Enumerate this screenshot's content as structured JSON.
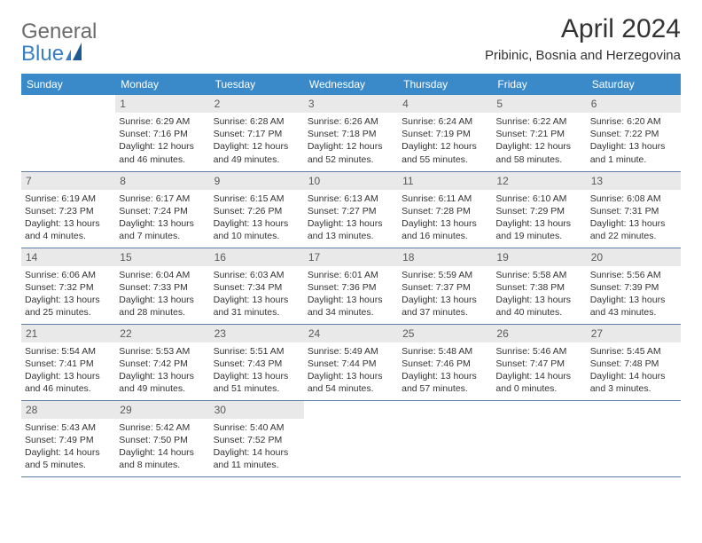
{
  "brand": {
    "word1": "General",
    "word2": "Blue"
  },
  "title": "April 2024",
  "location": "Pribinic, Bosnia and Herzegovina",
  "colors": {
    "header_bg": "#3a8ac9",
    "header_text": "#ffffff",
    "daynum_bg": "#e9e9e9",
    "daynum_text": "#5a5a5a",
    "body_text": "#333333",
    "rule": "#5b7da6",
    "logo_gray": "#6b6b6b",
    "logo_blue": "#3a7fc4",
    "page_bg": "#ffffff"
  },
  "weekdays": [
    "Sunday",
    "Monday",
    "Tuesday",
    "Wednesday",
    "Thursday",
    "Friday",
    "Saturday"
  ],
  "weeks": [
    [
      null,
      {
        "day": "1",
        "sunrise": "Sunrise: 6:29 AM",
        "sunset": "Sunset: 7:16 PM",
        "day1": "Daylight: 12 hours",
        "day2": "and 46 minutes."
      },
      {
        "day": "2",
        "sunrise": "Sunrise: 6:28 AM",
        "sunset": "Sunset: 7:17 PM",
        "day1": "Daylight: 12 hours",
        "day2": "and 49 minutes."
      },
      {
        "day": "3",
        "sunrise": "Sunrise: 6:26 AM",
        "sunset": "Sunset: 7:18 PM",
        "day1": "Daylight: 12 hours",
        "day2": "and 52 minutes."
      },
      {
        "day": "4",
        "sunrise": "Sunrise: 6:24 AM",
        "sunset": "Sunset: 7:19 PM",
        "day1": "Daylight: 12 hours",
        "day2": "and 55 minutes."
      },
      {
        "day": "5",
        "sunrise": "Sunrise: 6:22 AM",
        "sunset": "Sunset: 7:21 PM",
        "day1": "Daylight: 12 hours",
        "day2": "and 58 minutes."
      },
      {
        "day": "6",
        "sunrise": "Sunrise: 6:20 AM",
        "sunset": "Sunset: 7:22 PM",
        "day1": "Daylight: 13 hours",
        "day2": "and 1 minute."
      }
    ],
    [
      {
        "day": "7",
        "sunrise": "Sunrise: 6:19 AM",
        "sunset": "Sunset: 7:23 PM",
        "day1": "Daylight: 13 hours",
        "day2": "and 4 minutes."
      },
      {
        "day": "8",
        "sunrise": "Sunrise: 6:17 AM",
        "sunset": "Sunset: 7:24 PM",
        "day1": "Daylight: 13 hours",
        "day2": "and 7 minutes."
      },
      {
        "day": "9",
        "sunrise": "Sunrise: 6:15 AM",
        "sunset": "Sunset: 7:26 PM",
        "day1": "Daylight: 13 hours",
        "day2": "and 10 minutes."
      },
      {
        "day": "10",
        "sunrise": "Sunrise: 6:13 AM",
        "sunset": "Sunset: 7:27 PM",
        "day1": "Daylight: 13 hours",
        "day2": "and 13 minutes."
      },
      {
        "day": "11",
        "sunrise": "Sunrise: 6:11 AM",
        "sunset": "Sunset: 7:28 PM",
        "day1": "Daylight: 13 hours",
        "day2": "and 16 minutes."
      },
      {
        "day": "12",
        "sunrise": "Sunrise: 6:10 AM",
        "sunset": "Sunset: 7:29 PM",
        "day1": "Daylight: 13 hours",
        "day2": "and 19 minutes."
      },
      {
        "day": "13",
        "sunrise": "Sunrise: 6:08 AM",
        "sunset": "Sunset: 7:31 PM",
        "day1": "Daylight: 13 hours",
        "day2": "and 22 minutes."
      }
    ],
    [
      {
        "day": "14",
        "sunrise": "Sunrise: 6:06 AM",
        "sunset": "Sunset: 7:32 PM",
        "day1": "Daylight: 13 hours",
        "day2": "and 25 minutes."
      },
      {
        "day": "15",
        "sunrise": "Sunrise: 6:04 AM",
        "sunset": "Sunset: 7:33 PM",
        "day1": "Daylight: 13 hours",
        "day2": "and 28 minutes."
      },
      {
        "day": "16",
        "sunrise": "Sunrise: 6:03 AM",
        "sunset": "Sunset: 7:34 PM",
        "day1": "Daylight: 13 hours",
        "day2": "and 31 minutes."
      },
      {
        "day": "17",
        "sunrise": "Sunrise: 6:01 AM",
        "sunset": "Sunset: 7:36 PM",
        "day1": "Daylight: 13 hours",
        "day2": "and 34 minutes."
      },
      {
        "day": "18",
        "sunrise": "Sunrise: 5:59 AM",
        "sunset": "Sunset: 7:37 PM",
        "day1": "Daylight: 13 hours",
        "day2": "and 37 minutes."
      },
      {
        "day": "19",
        "sunrise": "Sunrise: 5:58 AM",
        "sunset": "Sunset: 7:38 PM",
        "day1": "Daylight: 13 hours",
        "day2": "and 40 minutes."
      },
      {
        "day": "20",
        "sunrise": "Sunrise: 5:56 AM",
        "sunset": "Sunset: 7:39 PM",
        "day1": "Daylight: 13 hours",
        "day2": "and 43 minutes."
      }
    ],
    [
      {
        "day": "21",
        "sunrise": "Sunrise: 5:54 AM",
        "sunset": "Sunset: 7:41 PM",
        "day1": "Daylight: 13 hours",
        "day2": "and 46 minutes."
      },
      {
        "day": "22",
        "sunrise": "Sunrise: 5:53 AM",
        "sunset": "Sunset: 7:42 PM",
        "day1": "Daylight: 13 hours",
        "day2": "and 49 minutes."
      },
      {
        "day": "23",
        "sunrise": "Sunrise: 5:51 AM",
        "sunset": "Sunset: 7:43 PM",
        "day1": "Daylight: 13 hours",
        "day2": "and 51 minutes."
      },
      {
        "day": "24",
        "sunrise": "Sunrise: 5:49 AM",
        "sunset": "Sunset: 7:44 PM",
        "day1": "Daylight: 13 hours",
        "day2": "and 54 minutes."
      },
      {
        "day": "25",
        "sunrise": "Sunrise: 5:48 AM",
        "sunset": "Sunset: 7:46 PM",
        "day1": "Daylight: 13 hours",
        "day2": "and 57 minutes."
      },
      {
        "day": "26",
        "sunrise": "Sunrise: 5:46 AM",
        "sunset": "Sunset: 7:47 PM",
        "day1": "Daylight: 14 hours",
        "day2": "and 0 minutes."
      },
      {
        "day": "27",
        "sunrise": "Sunrise: 5:45 AM",
        "sunset": "Sunset: 7:48 PM",
        "day1": "Daylight: 14 hours",
        "day2": "and 3 minutes."
      }
    ],
    [
      {
        "day": "28",
        "sunrise": "Sunrise: 5:43 AM",
        "sunset": "Sunset: 7:49 PM",
        "day1": "Daylight: 14 hours",
        "day2": "and 5 minutes."
      },
      {
        "day": "29",
        "sunrise": "Sunrise: 5:42 AM",
        "sunset": "Sunset: 7:50 PM",
        "day1": "Daylight: 14 hours",
        "day2": "and 8 minutes."
      },
      {
        "day": "30",
        "sunrise": "Sunrise: 5:40 AM",
        "sunset": "Sunset: 7:52 PM",
        "day1": "Daylight: 14 hours",
        "day2": "and 11 minutes."
      },
      null,
      null,
      null,
      null
    ]
  ]
}
